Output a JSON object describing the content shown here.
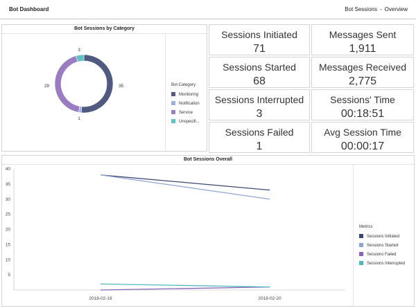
{
  "header": {
    "title": "Bot Dashboard",
    "context": "Bot Sessions",
    "separator": "-",
    "view": "Overview"
  },
  "donut": {
    "title": "Bot Sessions by Category",
    "legend_title": "Bot Category",
    "categories": [
      {
        "name": "Monitoring",
        "value": 35,
        "color": "#505a80"
      },
      {
        "name": "Notification",
        "value": 1,
        "color": "#9fb0dd"
      },
      {
        "name": "Service",
        "value": 29,
        "color": "#9a7cc3"
      },
      {
        "name": "Unspecifi...",
        "value": 3,
        "color": "#5fc0c5"
      }
    ]
  },
  "kpis": [
    {
      "label": "Sessions Initiated",
      "value": "71"
    },
    {
      "label": "Messages Sent",
      "value": "1,911"
    },
    {
      "label": "Sessions Started",
      "value": "68"
    },
    {
      "label": "Messages Received",
      "value": "2,775"
    },
    {
      "label": "Sessions Interrupted",
      "value": "3"
    },
    {
      "label": "Sessions' Time",
      "value": "00:18:51"
    },
    {
      "label": "Sessions Failed",
      "value": "1"
    },
    {
      "label": "Avg Session Time",
      "value": "00:00:17"
    }
  ],
  "chart_data": {
    "type": "line",
    "title": "Bot Sessions Overall",
    "x": [
      "2018-02-19",
      "2018-02-20"
    ],
    "ylim": [
      0,
      40
    ],
    "yticks": [
      5,
      10,
      15,
      20,
      25,
      30,
      35,
      40
    ],
    "grid": false,
    "legend_title": "Metrics",
    "legend_position": "right",
    "series": [
      {
        "name": "Sessions Initiated",
        "values": [
          38,
          33
        ],
        "color": "#3a4570"
      },
      {
        "name": "Sessions Started",
        "values": [
          38,
          30
        ],
        "color": "#8ca3d6"
      },
      {
        "name": "Sessions Failed",
        "values": [
          0,
          1
        ],
        "color": "#8a62b8"
      },
      {
        "name": "Sessions Interrupted",
        "values": [
          2,
          1
        ],
        "color": "#4fb8be"
      }
    ]
  }
}
